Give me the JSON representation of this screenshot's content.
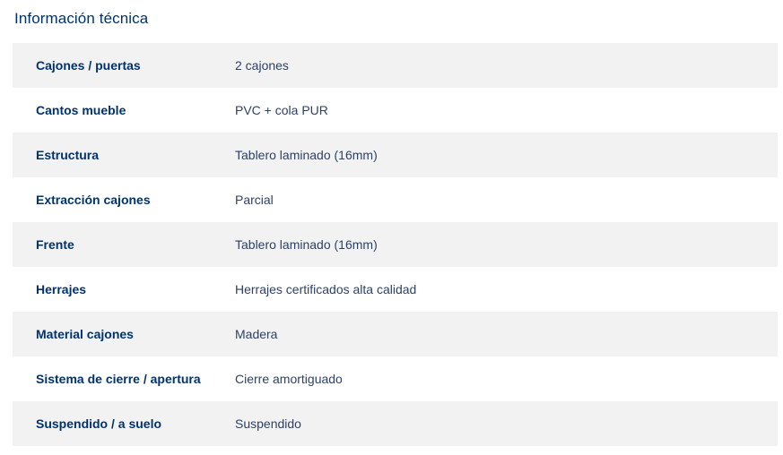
{
  "page": {
    "title": "Información técnica"
  },
  "colors": {
    "heading": "#00336e",
    "label": "#00336e",
    "value": "#2d4265",
    "row_alt_bg": "#f2f2f2",
    "row_bg": "#ffffff",
    "page_bg": "#ffffff"
  },
  "table": {
    "rows": [
      {
        "label": "Cajones / puertas",
        "value": "2 cajones"
      },
      {
        "label": "Cantos mueble",
        "value": "PVC + cola PUR"
      },
      {
        "label": "Estructura",
        "value": "Tablero laminado (16mm)"
      },
      {
        "label": "Extracción cajones",
        "value": "Parcial"
      },
      {
        "label": "Frente",
        "value": "Tablero laminado (16mm)"
      },
      {
        "label": "Herrajes",
        "value": "Herrajes certificados alta calidad"
      },
      {
        "label": "Material cajones",
        "value": "Madera"
      },
      {
        "label": "Sistema de cierre / apertura",
        "value": "Cierre amortiguado"
      },
      {
        "label": "Suspendido / a suelo",
        "value": "Suspendido"
      }
    ]
  }
}
